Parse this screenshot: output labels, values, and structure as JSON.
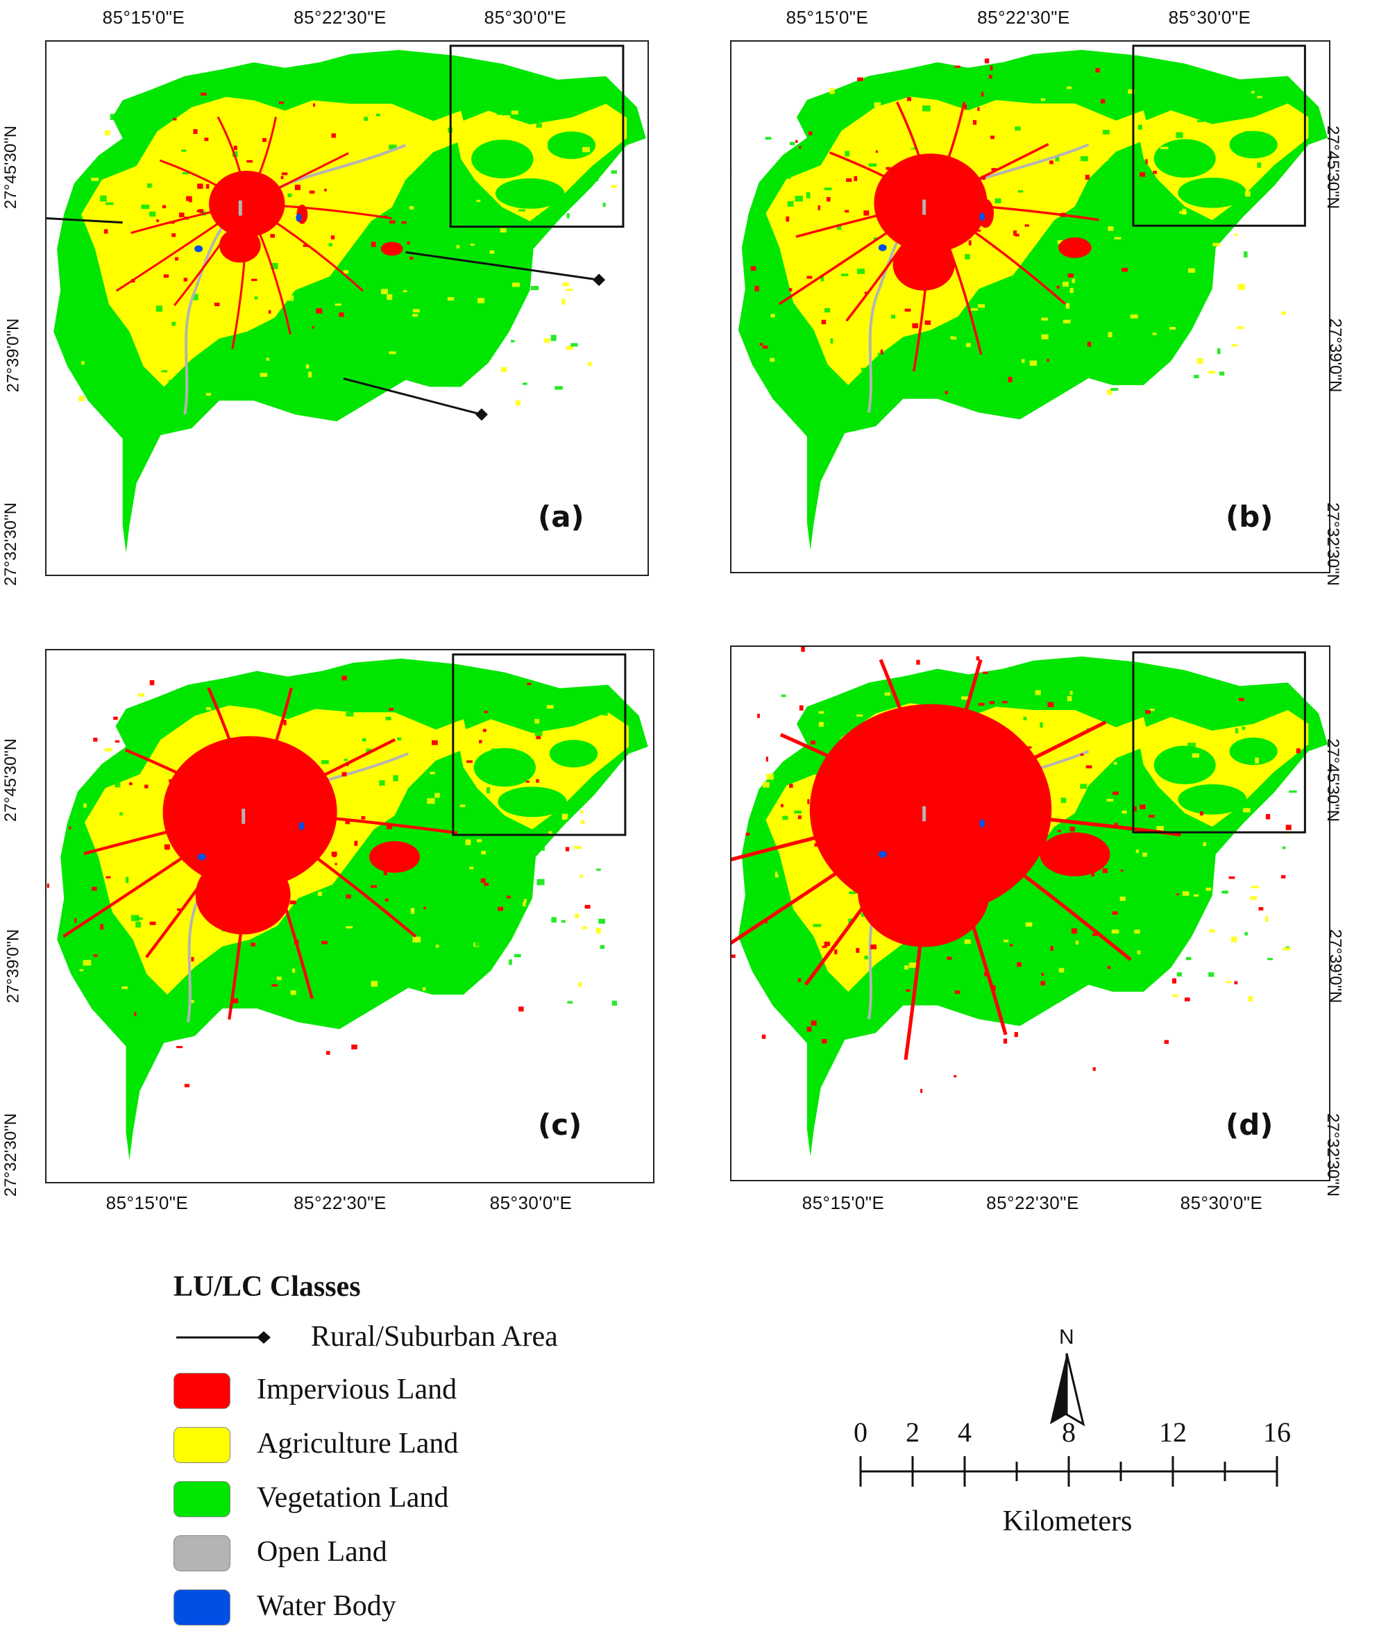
{
  "panels": [
    {
      "id": "a",
      "label": "(a)",
      "urban": 1.0,
      "rural_markers": true
    },
    {
      "id": "b",
      "label": "(b)",
      "urban": 1.5,
      "rural_markers": false
    },
    {
      "id": "c",
      "label": "(c)",
      "urban": 2.3,
      "rural_markers": false
    },
    {
      "id": "d",
      "label": "(d)",
      "urban": 3.2,
      "rural_markers": false
    }
  ],
  "axes": {
    "lon_labels": [
      "85°15'0\"E",
      "85°22'30\"E",
      "85°30'0\"E"
    ],
    "lat_labels": [
      "27°45'30\"N",
      "27°39'0\"N",
      "27°32'30\"N"
    ]
  },
  "legend": {
    "title": "LU/LC Classes",
    "marker_label": "Rural/Suburban Area",
    "classes": [
      {
        "label": "Impervious Land",
        "color": "#ff0000"
      },
      {
        "label": "Agriculture Land",
        "color": "#ffff00"
      },
      {
        "label": "Vegetation Land",
        "color": "#00e600"
      },
      {
        "label": "Open Land",
        "color": "#b4b4b4"
      },
      {
        "label": "Water Body",
        "color": "#0050e6"
      }
    ]
  },
  "north_arrow": {
    "label": "N",
    "icon": "north-arrow-icon"
  },
  "scale_bar": {
    "ticks": [
      "0",
      "2",
      "4",
      "8",
      "12",
      "16"
    ],
    "unit": "Kilometers"
  }
}
